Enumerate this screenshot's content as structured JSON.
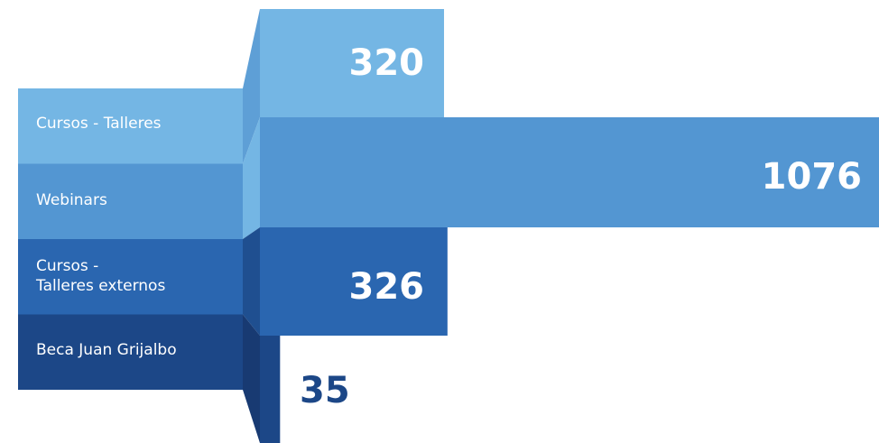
{
  "chart_data": {
    "type": "bar",
    "orientation": "horizontal",
    "categories": [
      "Cursos - Talleres",
      "Webinars",
      "Cursos -\nTalleres externos",
      "Beca Juan Grijalbo"
    ],
    "values": [
      320,
      1076,
      326,
      35
    ],
    "value_labels": [
      "320",
      "1076",
      "326",
      "35"
    ],
    "title": "",
    "xlabel": "",
    "ylabel": "",
    "grid": false,
    "legend": "none"
  },
  "colors": {
    "series": [
      "#74b6e4",
      "#5396d2",
      "#2a66b0",
      "#1c4787"
    ],
    "shade": [
      "#5e9fd6",
      "#74b6e4",
      "#1f4f90",
      "#183a72"
    ],
    "value_text_inside": "#ffffff",
    "value_text_outside": "#1c4787"
  }
}
